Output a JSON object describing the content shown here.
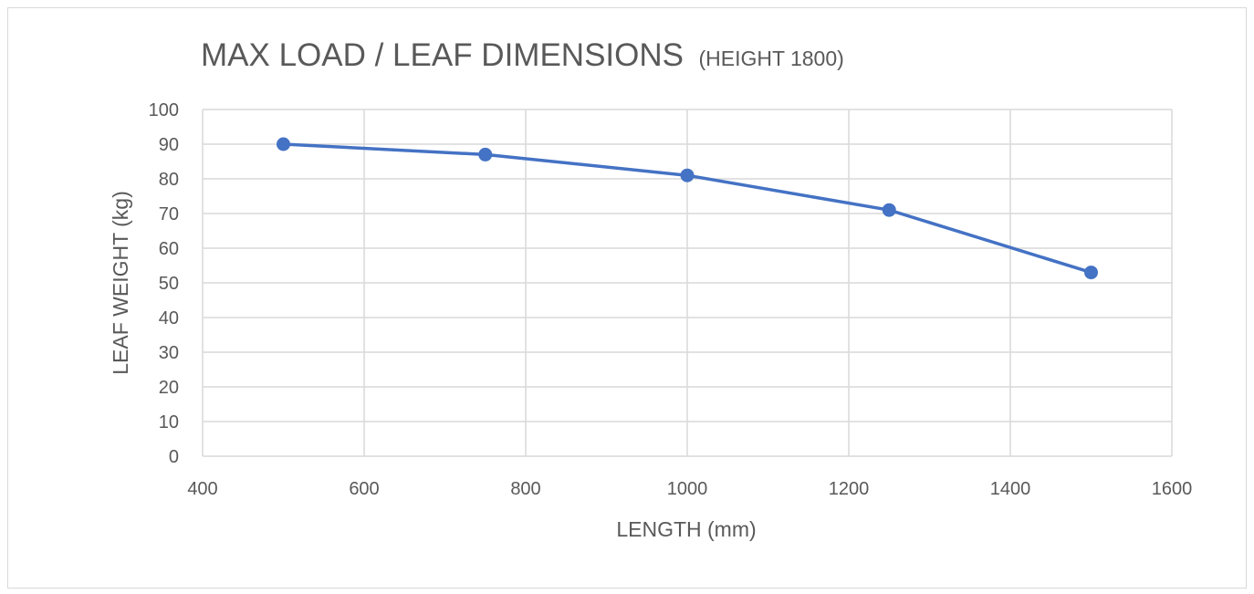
{
  "chart_data": {
    "type": "line",
    "title": "MAX LOAD / LEAF DIMENSIONS",
    "subtitle": "(HEIGHT 1800)",
    "xlabel": "LENGTH (mm)",
    "ylabel": "LEAF WEIGHT (kg)",
    "xlim": [
      400,
      1600
    ],
    "ylim": [
      0,
      100
    ],
    "xticks": [
      400,
      600,
      800,
      1000,
      1200,
      1400,
      1600
    ],
    "yticks": [
      0,
      10,
      20,
      30,
      40,
      50,
      60,
      70,
      80,
      90,
      100
    ],
    "xtick_labels": [
      "400",
      "600",
      "800",
      "1000",
      "1200",
      "1400",
      "1600"
    ],
    "ytick_labels": [
      "0",
      "10",
      "20",
      "30",
      "40",
      "50",
      "60",
      "70",
      "80",
      "90",
      "100"
    ],
    "grid": true,
    "legend": "none",
    "series": [
      {
        "color": "#4472c4",
        "x": [
          500,
          750,
          1000,
          1250,
          1500
        ],
        "y": [
          90,
          87,
          81,
          71,
          53
        ]
      }
    ]
  }
}
